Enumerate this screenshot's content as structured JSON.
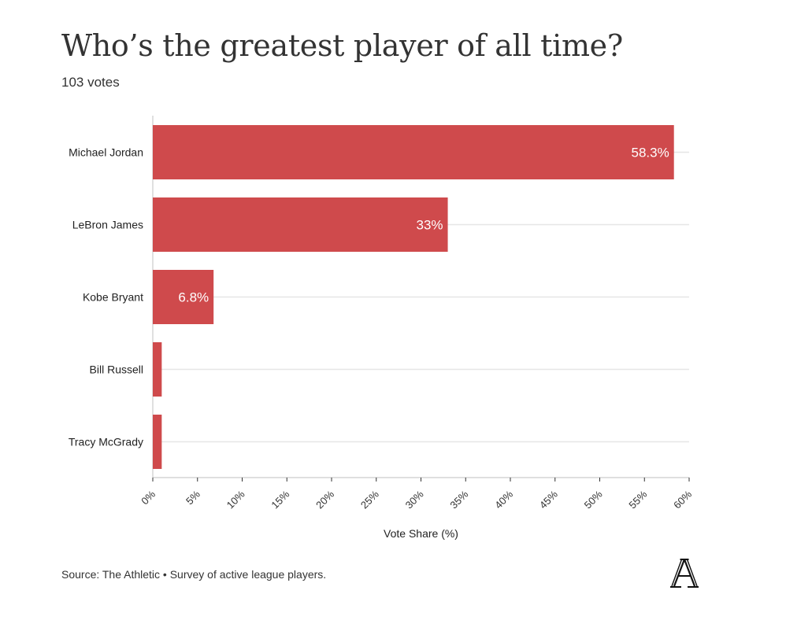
{
  "header": {
    "title": "Who’s the greatest player of all time?",
    "subtitle": "103 votes"
  },
  "footer": {
    "source": "Source: The Athletic • Survey of active league players.",
    "logo_icon": "athletic-a-logo"
  },
  "colors": {
    "bar": "#cf4a4c",
    "grid": "#e6e6e6",
    "axis": "#cccccc",
    "value_label": "#ffffff"
  },
  "chart_data": {
    "type": "bar",
    "orientation": "horizontal",
    "title": "Who’s the greatest player of all time?",
    "subtitle": "103 votes",
    "categories": [
      "Michael Jordan",
      "LeBron James",
      "Kobe Bryant",
      "Bill Russell",
      "Tracy McGrady"
    ],
    "values": [
      58.3,
      33,
      6.8,
      1,
      1
    ],
    "value_labels": [
      "58.3%",
      "33%",
      "6.8%",
      "",
      ""
    ],
    "xlabel": "Vote Share (%)",
    "ylabel": "",
    "xlim": [
      0,
      60
    ],
    "xticks": [
      0,
      5,
      10,
      15,
      20,
      25,
      30,
      35,
      40,
      45,
      50,
      55,
      60
    ],
    "xtick_labels": [
      "0%",
      "5%",
      "10%",
      "15%",
      "20%",
      "25%",
      "30%",
      "35%",
      "40%",
      "45%",
      "50%",
      "55%",
      "60%"
    ],
    "grid": true,
    "legend": "none"
  }
}
